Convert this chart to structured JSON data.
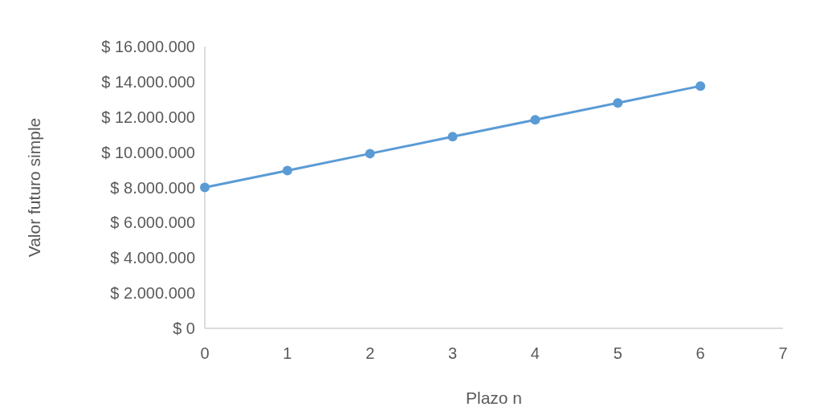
{
  "chart_data": {
    "type": "line",
    "xlabel": "Plazo n",
    "ylabel": "Valor futuro simple",
    "x": [
      0,
      1,
      2,
      3,
      4,
      5,
      6
    ],
    "series": [
      {
        "color": "#5b9bd5",
        "values": [
          8000000,
          8960000,
          9920000,
          10880000,
          11840000,
          12800000,
          13760000
        ]
      }
    ],
    "xlim": [
      0,
      7
    ],
    "xticks": [
      0,
      1,
      2,
      3,
      4,
      5,
      6,
      7
    ],
    "ylim": [
      0,
      16000000
    ],
    "yticks": [
      {
        "value": 0,
        "label": "$ 0"
      },
      {
        "value": 2000000,
        "label": "$ 2.000.000"
      },
      {
        "value": 4000000,
        "label": "$ 4.000.000"
      },
      {
        "value": 6000000,
        "label": "$ 6.000.000"
      },
      {
        "value": 8000000,
        "label": "$ 8.000.000"
      },
      {
        "value": 10000000,
        "label": "$ 10.000.000"
      },
      {
        "value": 12000000,
        "label": "$ 12.000.000"
      },
      {
        "value": 14000000,
        "label": "$ 14.000.000"
      },
      {
        "value": 16000000,
        "label": "$ 16.000.000"
      }
    ],
    "marker": "circle",
    "line_style": "solid",
    "grid": false
  }
}
